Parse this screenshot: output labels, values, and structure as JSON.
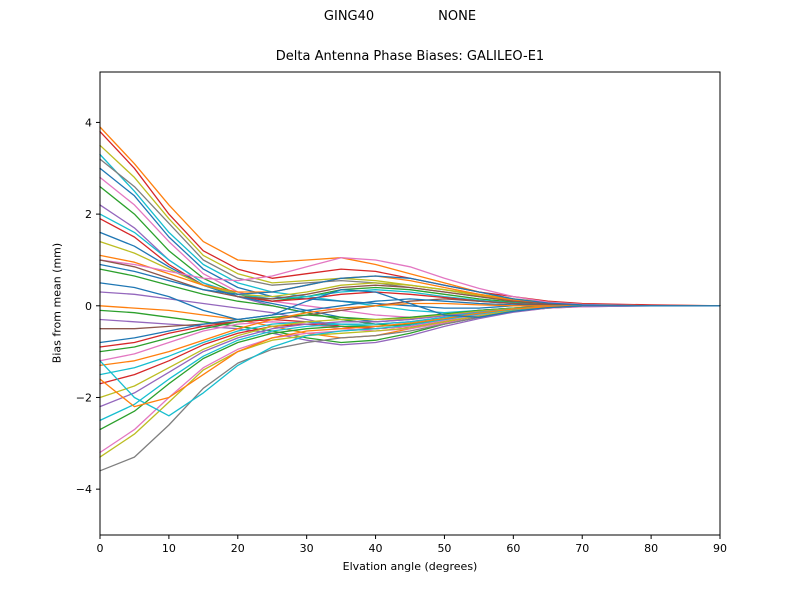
{
  "chart_data": {
    "type": "line",
    "suptitle_left": "GING40",
    "suptitle_right": "NONE",
    "title": "Delta Antenna Phase Biases: GALILEO-E1",
    "xlabel": "Elvation angle (degrees)",
    "ylabel": "Bias from mean (mm)",
    "xlim": [
      0,
      90
    ],
    "ylim": [
      -5,
      5.1
    ],
    "xticks": [
      0,
      10,
      20,
      30,
      40,
      50,
      60,
      70,
      80,
      90
    ],
    "yticks": [
      -4,
      -2,
      0,
      2,
      4
    ],
    "grid": false,
    "legend": "none",
    "x": [
      0,
      5,
      10,
      15,
      20,
      25,
      30,
      35,
      40,
      45,
      50,
      55,
      60,
      65,
      70,
      80,
      90
    ],
    "series": [
      {
        "color": "#ff7f0e",
        "values": [
          3.9,
          3.1,
          2.2,
          1.4,
          1.0,
          0.95,
          1.0,
          1.05,
          0.9,
          0.7,
          0.5,
          0.3,
          0.15,
          0.05,
          0.02,
          0.01,
          0
        ]
      },
      {
        "color": "#d62728",
        "values": [
          3.8,
          3.0,
          2.0,
          1.2,
          0.8,
          0.6,
          0.7,
          0.8,
          0.75,
          0.6,
          0.45,
          0.3,
          0.2,
          0.1,
          0.05,
          0.02,
          0
        ]
      },
      {
        "color": "#bcbd22",
        "values": [
          3.5,
          2.8,
          1.9,
          1.1,
          0.7,
          0.5,
          0.55,
          0.6,
          0.55,
          0.45,
          0.35,
          0.25,
          0.15,
          0.08,
          0.03,
          0,
          0
        ]
      },
      {
        "color": "#17becf",
        "values": [
          3.3,
          2.5,
          1.6,
          0.9,
          0.5,
          0.3,
          0.2,
          0.1,
          0,
          -0.1,
          -0.15,
          -0.1,
          -0.05,
          0,
          0,
          0,
          0
        ]
      },
      {
        "color": "#7f7f7f",
        "values": [
          3.2,
          2.6,
          1.8,
          1.0,
          0.6,
          0.45,
          0.5,
          0.55,
          0.5,
          0.4,
          0.3,
          0.2,
          0.1,
          0.05,
          0,
          0,
          0
        ]
      },
      {
        "color": "#1f77b4",
        "values": [
          3.0,
          2.4,
          1.5,
          0.8,
          0.4,
          0.2,
          0.15,
          0.1,
          0.05,
          0,
          -0.05,
          -0.05,
          0,
          0,
          0,
          0,
          0
        ]
      },
      {
        "color": "#e377c2",
        "values": [
          2.8,
          2.2,
          1.4,
          0.7,
          0.3,
          0.1,
          0,
          -0.1,
          -0.2,
          -0.25,
          -0.2,
          -0.1,
          -0.05,
          0,
          0,
          0,
          0
        ]
      },
      {
        "color": "#2ca02c",
        "values": [
          2.6,
          2.0,
          1.2,
          0.6,
          0.25,
          0.1,
          0.2,
          0.35,
          0.4,
          0.35,
          0.25,
          0.15,
          0.08,
          0.03,
          0,
          0,
          0
        ]
      },
      {
        "color": "#9467bd",
        "values": [
          2.2,
          1.7,
          1.0,
          0.5,
          0.2,
          0,
          -0.15,
          -0.3,
          -0.4,
          -0.35,
          -0.25,
          -0.15,
          -0.08,
          -0.03,
          0,
          0,
          0
        ]
      },
      {
        "color": "#17becf",
        "values": [
          2.0,
          1.6,
          1.0,
          0.5,
          0.25,
          0.15,
          0.2,
          0.3,
          0.35,
          0.3,
          0.2,
          0.12,
          0.06,
          0.02,
          0,
          0,
          0
        ]
      },
      {
        "color": "#d62728",
        "values": [
          1.9,
          1.5,
          0.9,
          0.45,
          0.2,
          0.1,
          0.15,
          0.25,
          0.3,
          0.25,
          0.18,
          0.1,
          0.05,
          0,
          0,
          0,
          0
        ]
      },
      {
        "color": "#1f77b4",
        "values": [
          1.6,
          1.3,
          0.85,
          0.45,
          0.2,
          0.05,
          -0.1,
          -0.25,
          -0.35,
          -0.3,
          -0.2,
          -0.1,
          -0.05,
          0,
          0,
          0,
          0
        ]
      },
      {
        "color": "#bcbd22",
        "values": [
          1.4,
          1.15,
          0.8,
          0.45,
          0.25,
          0.2,
          0.3,
          0.45,
          0.5,
          0.45,
          0.35,
          0.22,
          0.12,
          0.05,
          0.02,
          0,
          0
        ]
      },
      {
        "color": "#ff7f0e",
        "values": [
          1.1,
          0.95,
          0.7,
          0.45,
          0.3,
          0.3,
          0.45,
          0.6,
          0.65,
          0.55,
          0.4,
          0.25,
          0.12,
          0.05,
          0,
          0,
          0
        ]
      },
      {
        "color": "#e377c2",
        "values": [
          1.0,
          0.9,
          0.75,
          0.6,
          0.55,
          0.65,
          0.85,
          1.05,
          1.0,
          0.85,
          0.6,
          0.38,
          0.2,
          0.08,
          0.03,
          0,
          0
        ]
      },
      {
        "color": "#8c564b",
        "values": [
          1.0,
          0.85,
          0.6,
          0.35,
          0.2,
          0.15,
          0.25,
          0.4,
          0.45,
          0.4,
          0.3,
          0.2,
          0.1,
          0.04,
          0,
          0,
          0
        ]
      },
      {
        "color": "#1f77b4",
        "values": [
          0.9,
          0.75,
          0.55,
          0.35,
          0.25,
          0.3,
          0.45,
          0.6,
          0.65,
          0.6,
          0.45,
          0.3,
          0.15,
          0.06,
          0.02,
          0,
          0
        ]
      },
      {
        "color": "#2ca02c",
        "values": [
          0.8,
          0.65,
          0.45,
          0.25,
          0.1,
          0,
          -0.15,
          -0.3,
          -0.4,
          -0.45,
          -0.35,
          -0.22,
          -0.1,
          -0.04,
          0,
          0,
          0
        ]
      },
      {
        "color": "#9467bd",
        "values": [
          0.3,
          0.25,
          0.15,
          0.05,
          -0.05,
          -0.15,
          -0.3,
          -0.45,
          -0.5,
          -0.45,
          -0.3,
          -0.18,
          -0.08,
          -0.03,
          0,
          0,
          0
        ]
      },
      {
        "color": "#ff7f0e",
        "values": [
          0,
          -0.05,
          -0.1,
          -0.2,
          -0.3,
          -0.45,
          -0.6,
          -0.7,
          -0.65,
          -0.5,
          -0.35,
          -0.2,
          -0.1,
          -0.04,
          0,
          0,
          0
        ]
      },
      {
        "color": "#2ca02c",
        "values": [
          -0.1,
          -0.15,
          -0.25,
          -0.35,
          -0.45,
          -0.55,
          -0.7,
          -0.8,
          -0.75,
          -0.6,
          -0.4,
          -0.25,
          -0.12,
          -0.05,
          0,
          0,
          0
        ]
      },
      {
        "color": "#9467bd",
        "values": [
          -0.3,
          -0.35,
          -0.4,
          -0.45,
          -0.5,
          -0.6,
          -0.75,
          -0.85,
          -0.8,
          -0.65,
          -0.45,
          -0.28,
          -0.14,
          -0.05,
          -0.02,
          0,
          0
        ]
      },
      {
        "color": "#8c564b",
        "values": [
          -0.5,
          -0.5,
          -0.45,
          -0.4,
          -0.35,
          -0.3,
          -0.2,
          -0.1,
          0,
          0.1,
          0.15,
          0.1,
          0.05,
          0.02,
          0,
          0,
          0
        ]
      },
      {
        "color": "#1f77b4",
        "values": [
          -0.8,
          -0.7,
          -0.55,
          -0.4,
          -0.3,
          -0.2,
          -0.1,
          0,
          0.1,
          0.15,
          0.1,
          0.05,
          0.02,
          0,
          0,
          0,
          0
        ]
      },
      {
        "color": "#d62728",
        "values": [
          -0.9,
          -0.8,
          -0.6,
          -0.45,
          -0.35,
          -0.3,
          -0.35,
          -0.45,
          -0.5,
          -0.45,
          -0.35,
          -0.2,
          -0.1,
          -0.04,
          0,
          0,
          0
        ]
      },
      {
        "color": "#2ca02c",
        "values": [
          -1.0,
          -0.9,
          -0.7,
          -0.5,
          -0.35,
          -0.25,
          -0.2,
          -0.25,
          -0.3,
          -0.25,
          -0.18,
          -0.1,
          -0.05,
          -0.02,
          0,
          0,
          0
        ]
      },
      {
        "color": "#e377c2",
        "values": [
          -1.2,
          -1.05,
          -0.8,
          -0.55,
          -0.4,
          -0.35,
          -0.4,
          -0.5,
          -0.55,
          -0.5,
          -0.38,
          -0.25,
          -0.12,
          -0.05,
          -0.02,
          0,
          0
        ]
      },
      {
        "color": "#ff7f0e",
        "values": [
          -1.3,
          -1.2,
          -1.0,
          -0.75,
          -0.5,
          -0.3,
          -0.15,
          -0.05,
          0,
          0.05,
          0.05,
          0.02,
          0,
          0,
          0,
          0,
          0
        ]
      },
      {
        "color": "#17becf",
        "values": [
          -1.5,
          -1.35,
          -1.1,
          -0.8,
          -0.55,
          -0.4,
          -0.35,
          -0.4,
          -0.45,
          -0.4,
          -0.3,
          -0.2,
          -0.1,
          -0.04,
          0,
          0,
          0
        ]
      },
      {
        "color": "#d62728",
        "values": [
          -1.7,
          -1.5,
          -1.2,
          -0.85,
          -0.6,
          -0.45,
          -0.4,
          -0.45,
          -0.5,
          -0.45,
          -0.35,
          -0.22,
          -0.1,
          -0.04,
          0,
          0,
          0
        ]
      },
      {
        "color": "#bcbd22",
        "values": [
          -2.0,
          -1.75,
          -1.35,
          -0.95,
          -0.65,
          -0.45,
          -0.35,
          -0.3,
          -0.3,
          -0.28,
          -0.2,
          -0.12,
          -0.06,
          -0.02,
          0,
          0,
          0
        ]
      },
      {
        "color": "#9467bd",
        "values": [
          -2.2,
          -1.9,
          -1.45,
          -1.0,
          -0.7,
          -0.5,
          -0.4,
          -0.35,
          -0.35,
          -0.3,
          -0.22,
          -0.14,
          -0.07,
          -0.02,
          0,
          0,
          0
        ]
      },
      {
        "color": "#17becf",
        "values": [
          -2.5,
          -2.15,
          -1.6,
          -1.1,
          -0.75,
          -0.55,
          -0.45,
          -0.4,
          -0.4,
          -0.35,
          -0.25,
          -0.15,
          -0.07,
          -0.02,
          0,
          0,
          0
        ]
      },
      {
        "color": "#2ca02c",
        "values": [
          -2.7,
          -2.3,
          -1.7,
          -1.15,
          -0.8,
          -0.6,
          -0.5,
          -0.45,
          -0.45,
          -0.4,
          -0.3,
          -0.18,
          -0.08,
          -0.03,
          0,
          0,
          0
        ]
      },
      {
        "color": "#e377c2",
        "values": [
          -3.2,
          -2.7,
          -2.0,
          -1.35,
          -0.95,
          -0.7,
          -0.6,
          -0.55,
          -0.5,
          -0.45,
          -0.32,
          -0.2,
          -0.1,
          -0.03,
          0,
          0,
          0
        ]
      },
      {
        "color": "#bcbd22",
        "values": [
          -3.3,
          -2.8,
          -2.1,
          -1.4,
          -1.0,
          -0.75,
          -0.65,
          -0.6,
          -0.55,
          -0.48,
          -0.35,
          -0.22,
          -0.1,
          -0.04,
          0,
          0,
          0
        ]
      },
      {
        "color": "#7f7f7f",
        "values": [
          -3.6,
          -3.3,
          -2.6,
          -1.8,
          -1.25,
          -0.95,
          -0.8,
          -0.7,
          -0.65,
          -0.55,
          -0.4,
          -0.25,
          -0.12,
          -0.04,
          0,
          0,
          0
        ]
      },
      {
        "color": "#17becf",
        "values": [
          -1.2,
          -2.0,
          -2.4,
          -1.9,
          -1.3,
          -0.9,
          -0.65,
          -0.55,
          -0.5,
          -0.42,
          -0.3,
          -0.18,
          -0.08,
          -0.02,
          0,
          0,
          0
        ]
      },
      {
        "color": "#ff7f0e",
        "values": [
          -1.6,
          -2.2,
          -2.0,
          -1.5,
          -1.0,
          -0.7,
          -0.55,
          -0.5,
          -0.45,
          -0.38,
          -0.28,
          -0.16,
          -0.07,
          -0.02,
          0,
          0,
          0
        ]
      },
      {
        "color": "#1f77b4",
        "values": [
          0.5,
          0.4,
          0.2,
          -0.1,
          -0.3,
          -0.2,
          0.1,
          0.35,
          0.3,
          0.05,
          -0.2,
          -0.25,
          -0.12,
          -0.04,
          0,
          0,
          0
        ]
      }
    ]
  }
}
